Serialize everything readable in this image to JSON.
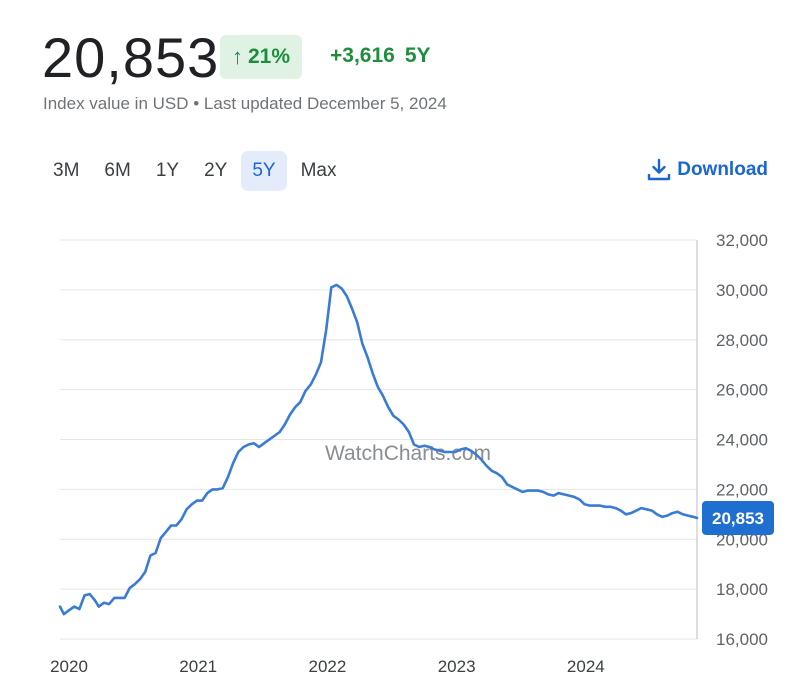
{
  "header": {
    "price": "20,853",
    "percent_arrow": "↑",
    "percent": "21%",
    "change": "+3,616",
    "period": "5Y",
    "subtitle": "Index value in USD • Last updated December 5, 2024"
  },
  "ranges": [
    {
      "label": "3M",
      "active": false
    },
    {
      "label": "6M",
      "active": false
    },
    {
      "label": "1Y",
      "active": false
    },
    {
      "label": "2Y",
      "active": false
    },
    {
      "label": "5Y",
      "active": true
    },
    {
      "label": "Max",
      "active": false
    }
  ],
  "download": {
    "label": "Download"
  },
  "colors": {
    "line": "#3a7bd5",
    "accent": "#1a66d2",
    "positive": "#1e8e3e",
    "badge_bg": "#dff2e3",
    "label_bg": "#1f6fd1",
    "grid": "#e6e6e6"
  },
  "chart_data": {
    "type": "line",
    "watermark": "WatchCharts.com",
    "ylim": [
      16000,
      32000
    ],
    "yticks": [
      16000,
      18000,
      20000,
      22000,
      24000,
      26000,
      28000,
      30000,
      32000
    ],
    "ytick_labels": [
      "16,000",
      "18,000",
      "20,000",
      "22,000",
      "24,000",
      "26,000",
      "28,000",
      "30,000",
      "32,000"
    ],
    "xlim": [
      2020.0,
      2024.93
    ],
    "xticks": [
      2020,
      2021,
      2022,
      2023,
      2024
    ],
    "xtick_labels": [
      "2020",
      "2021",
      "2022",
      "2023",
      "2024"
    ],
    "grid": true,
    "last_value_label": "20,853",
    "series": [
      {
        "x": [
          2020.0,
          2020.03,
          2020.07,
          2020.11,
          2020.15,
          2020.19,
          2020.23,
          2020.27,
          2020.3,
          2020.34,
          2020.38,
          2020.42,
          2020.46,
          2020.5,
          2020.54,
          2020.58,
          2020.62,
          2020.66,
          2020.7,
          2020.74,
          2020.78,
          2020.82,
          2020.86,
          2020.9,
          2020.94,
          2020.98,
          2021.02,
          2021.06,
          2021.1,
          2021.14,
          2021.18,
          2021.22,
          2021.26,
          2021.3,
          2021.34,
          2021.38,
          2021.42,
          2021.46,
          2021.5,
          2021.54,
          2021.58,
          2021.62,
          2021.66,
          2021.7,
          2021.74,
          2021.78,
          2021.82,
          2021.86,
          2021.9,
          2021.94,
          2021.98,
          2022.02,
          2022.06,
          2022.1,
          2022.14,
          2022.18,
          2022.22,
          2022.26,
          2022.3,
          2022.34,
          2022.38,
          2022.42,
          2022.46,
          2022.5,
          2022.54,
          2022.58,
          2022.62,
          2022.66,
          2022.7,
          2022.74,
          2022.78,
          2022.82,
          2022.86,
          2022.9,
          2022.94,
          2022.98,
          2023.02,
          2023.06,
          2023.1,
          2023.14,
          2023.18,
          2023.22,
          2023.26,
          2023.3,
          2023.34,
          2023.38,
          2023.42,
          2023.46,
          2023.5,
          2023.54,
          2023.58,
          2023.62,
          2023.66,
          2023.7,
          2023.74,
          2023.78,
          2023.82,
          2023.86,
          2023.9,
          2023.94,
          2023.98,
          2024.02,
          2024.06,
          2024.1,
          2024.14,
          2024.18,
          2024.22,
          2024.26,
          2024.3,
          2024.34,
          2024.38,
          2024.42,
          2024.46,
          2024.5,
          2024.54,
          2024.58,
          2024.62,
          2024.66,
          2024.7,
          2024.74,
          2024.78,
          2024.82,
          2024.86,
          2024.9,
          2024.93
        ],
        "values": [
          17300,
          17000,
          17150,
          17300,
          17200,
          17750,
          17800,
          17550,
          17300,
          17450,
          17400,
          17650,
          17650,
          17650,
          18050,
          18200,
          18400,
          18700,
          19350,
          19450,
          20050,
          20300,
          20550,
          20550,
          20800,
          21200,
          21400,
          21550,
          21550,
          21850,
          22000,
          22000,
          22050,
          22500,
          23050,
          23500,
          23700,
          23800,
          23850,
          23700,
          23850,
          24000,
          24150,
          24300,
          24600,
          25000,
          25300,
          25500,
          25950,
          26200,
          26600,
          27100,
          28400,
          30100,
          30200,
          30050,
          29750,
          29250,
          28700,
          27850,
          27300,
          26650,
          26100,
          25750,
          25300,
          24950,
          24800,
          24600,
          24300,
          23800,
          23700,
          23750,
          23700,
          23600,
          23550,
          23500,
          23500,
          23500,
          23600,
          23650,
          23550,
          23400,
          23200,
          22950,
          22750,
          22650,
          22500,
          22200,
          22100,
          22000,
          21900,
          21950,
          21950,
          21950,
          21900,
          21800,
          21750,
          21850,
          21800,
          21750,
          21700,
          21600,
          21400,
          21350,
          21350,
          21350,
          21300,
          21300,
          21250,
          21150,
          21000,
          21050,
          21150,
          21250,
          21200,
          21150,
          21000,
          20900,
          20950,
          21050,
          21100,
          21000,
          20950,
          20900,
          20853
        ]
      }
    ]
  }
}
